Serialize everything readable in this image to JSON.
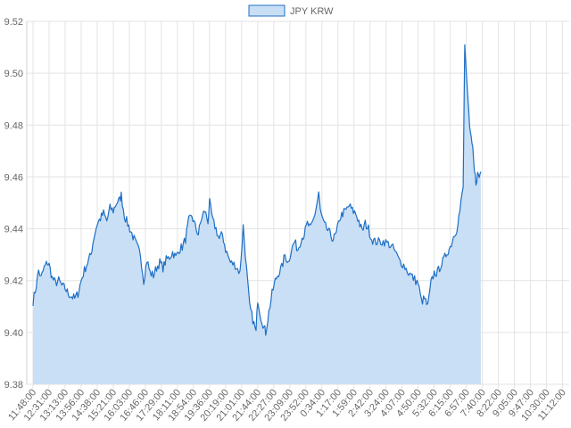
{
  "chart_data": {
    "type": "area",
    "legend": {
      "label": "JPY KRW",
      "position": "top"
    },
    "series": [
      {
        "name": "JPY KRW",
        "color": "#1f6fc5",
        "fill": "#c9dff5"
      }
    ],
    "x_tick_labels": [
      "11:48:00",
      "12:31:00",
      "13:13:00",
      "13:56:00",
      "14:38:00",
      "15:21:00",
      "16:03:00",
      "16:46:00",
      "17:29:00",
      "18:11:00",
      "18:54:00",
      "19:36:00",
      "20:19:00",
      "21:01:00",
      "21:44:00",
      "22:27:00",
      "23:09:00",
      "23:52:00",
      "0:34:00",
      "1:17:00",
      "1:59:00",
      "2:42:00",
      "3:24:00",
      "4:07:00",
      "4:50:00",
      "5:32:00",
      "6:15:00",
      "6:57:00",
      "7:40:00",
      "8:22:00",
      "9:05:00",
      "9:47:00",
      "10:30:00",
      "11:12:00"
    ],
    "y_tick_labels": [
      "9.52",
      "9.50",
      "9.48",
      "9.46",
      "9.44",
      "9.42",
      "9.40",
      "9.38"
    ],
    "ylim": [
      9.38,
      9.52
    ],
    "grid": true,
    "data_points": [
      [
        0,
        9.412
      ],
      [
        0.2,
        9.418
      ],
      [
        0.35,
        9.424
      ],
      [
        0.5,
        9.421
      ],
      [
        0.7,
        9.425
      ],
      [
        0.9,
        9.427
      ],
      [
        1.0,
        9.426
      ],
      [
        1.2,
        9.421
      ],
      [
        1.4,
        9.419
      ],
      [
        1.6,
        9.42
      ],
      [
        1.8,
        9.418
      ],
      [
        2.0,
        9.417
      ],
      [
        2.2,
        9.415
      ],
      [
        2.4,
        9.414
      ],
      [
        2.6,
        9.413
      ],
      [
        2.8,
        9.415
      ],
      [
        3.0,
        9.42
      ],
      [
        3.2,
        9.424
      ],
      [
        3.4,
        9.427
      ],
      [
        3.6,
        9.43
      ],
      [
        3.8,
        9.437
      ],
      [
        4.0,
        9.442
      ],
      [
        4.2,
        9.444
      ],
      [
        4.4,
        9.446
      ],
      [
        4.6,
        9.443
      ],
      [
        4.8,
        9.448
      ],
      [
        5.0,
        9.447
      ],
      [
        5.2,
        9.45
      ],
      [
        5.4,
        9.451
      ],
      [
        5.5,
        9.453
      ],
      [
        5.7,
        9.445
      ],
      [
        5.9,
        9.442
      ],
      [
        6.1,
        9.439
      ],
      [
        6.3,
        9.436
      ],
      [
        6.5,
        9.433
      ],
      [
        6.7,
        9.43
      ],
      [
        6.9,
        9.42
      ],
      [
        7.1,
        9.428
      ],
      [
        7.3,
        9.423
      ],
      [
        7.5,
        9.422
      ],
      [
        7.7,
        9.425
      ],
      [
        7.9,
        9.427
      ],
      [
        8.1,
        9.425
      ],
      [
        8.3,
        9.428
      ],
      [
        8.5,
        9.429
      ],
      [
        8.7,
        9.431
      ],
      [
        8.9,
        9.429
      ],
      [
        9.1,
        9.432
      ],
      [
        9.3,
        9.433
      ],
      [
        9.5,
        9.436
      ],
      [
        9.7,
        9.443
      ],
      [
        9.9,
        9.445
      ],
      [
        10.1,
        9.441
      ],
      [
        10.3,
        9.438
      ],
      [
        10.5,
        9.444
      ],
      [
        10.7,
        9.447
      ],
      [
        10.9,
        9.443
      ],
      [
        11.0,
        9.45
      ],
      [
        11.2,
        9.443
      ],
      [
        11.4,
        9.44
      ],
      [
        11.6,
        9.436
      ],
      [
        11.8,
        9.438
      ],
      [
        12.0,
        9.432
      ],
      [
        12.3,
        9.427
      ],
      [
        12.6,
        9.426
      ],
      [
        12.9,
        9.423
      ],
      [
        13.1,
        9.441
      ],
      [
        13.3,
        9.425
      ],
      [
        13.5,
        9.41
      ],
      [
        13.7,
        9.405
      ],
      [
        13.9,
        9.4
      ],
      [
        14.0,
        9.413
      ],
      [
        14.2,
        9.406
      ],
      [
        14.4,
        9.402
      ],
      [
        14.5,
        9.4
      ],
      [
        14.7,
        9.408
      ],
      [
        14.9,
        9.415
      ],
      [
        15.1,
        9.42
      ],
      [
        15.3,
        9.423
      ],
      [
        15.5,
        9.425
      ],
      [
        15.7,
        9.43
      ],
      [
        15.9,
        9.427
      ],
      [
        16.1,
        9.432
      ],
      [
        16.3,
        9.435
      ],
      [
        16.5,
        9.432
      ],
      [
        16.7,
        9.436
      ],
      [
        16.9,
        9.438
      ],
      [
        17.1,
        9.442
      ],
      [
        17.3,
        9.44
      ],
      [
        17.5,
        9.444
      ],
      [
        17.7,
        9.45
      ],
      [
        17.8,
        9.454
      ],
      [
        17.9,
        9.447
      ],
      [
        18.1,
        9.442
      ],
      [
        18.3,
        9.44
      ],
      [
        18.5,
        9.438
      ],
      [
        18.7,
        9.436
      ],
      [
        18.9,
        9.438
      ],
      [
        19.1,
        9.444
      ],
      [
        19.3,
        9.446
      ],
      [
        19.5,
        9.447
      ],
      [
        19.7,
        9.449
      ],
      [
        19.9,
        9.447
      ],
      [
        20.1,
        9.446
      ],
      [
        20.3,
        9.443
      ],
      [
        20.5,
        9.439
      ],
      [
        20.7,
        9.442
      ],
      [
        20.9,
        9.44
      ],
      [
        21.1,
        9.436
      ],
      [
        21.3,
        9.435
      ],
      [
        21.6,
        9.435
      ],
      [
        21.9,
        9.435
      ],
      [
        22.2,
        9.434
      ],
      [
        22.5,
        9.432
      ],
      [
        22.8,
        9.428
      ],
      [
        23.1,
        9.426
      ],
      [
        23.4,
        9.423
      ],
      [
        23.7,
        9.421
      ],
      [
        24.0,
        9.419
      ],
      [
        24.2,
        9.412
      ],
      [
        24.4,
        9.413
      ],
      [
        24.6,
        9.41
      ],
      [
        24.8,
        9.419
      ],
      [
        25.0,
        9.423
      ],
      [
        25.2,
        9.423
      ],
      [
        25.4,
        9.426
      ],
      [
        25.6,
        9.428
      ],
      [
        25.8,
        9.431
      ],
      [
        26.0,
        9.433
      ],
      [
        26.2,
        9.437
      ],
      [
        26.4,
        9.44
      ],
      [
        26.6,
        9.447
      ],
      [
        26.8,
        9.456
      ],
      [
        26.9,
        9.511
      ],
      [
        27.0,
        9.5
      ],
      [
        27.1,
        9.49
      ],
      [
        27.2,
        9.48
      ],
      [
        27.3,
        9.474
      ],
      [
        27.4,
        9.47
      ],
      [
        27.5,
        9.462
      ],
      [
        27.6,
        9.458
      ],
      [
        27.7,
        9.461
      ],
      [
        27.8,
        9.46
      ],
      [
        27.9,
        9.462
      ]
    ]
  }
}
